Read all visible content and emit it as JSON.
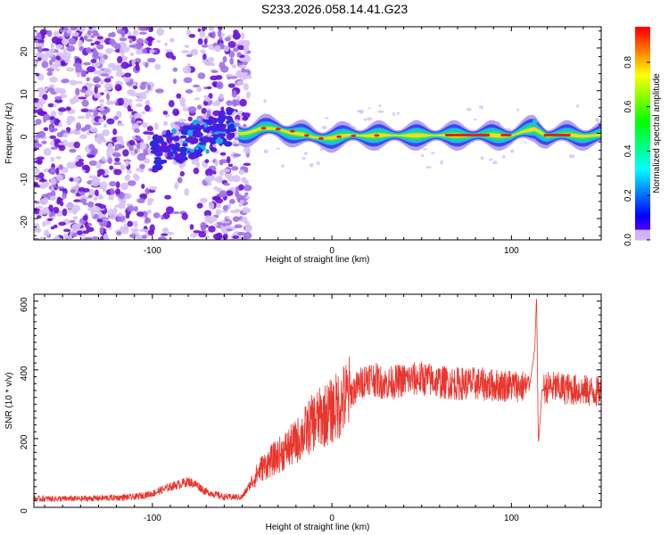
{
  "title": "S233.2026.058.14.41.G23",
  "chart_data": [
    {
      "type": "heatmap",
      "name": "spectrogram",
      "xlabel": "Height of straight line (km)",
      "ylabel": "Frequency (Hz)",
      "xlim": [
        -166,
        150
      ],
      "ylim": [
        -25,
        25
      ],
      "xticks": [
        -100,
        0,
        100
      ],
      "yticks": [
        -20,
        -10,
        0,
        10,
        20
      ],
      "colorbar": {
        "label": "Normalized spectral amplitude",
        "range": [
          0,
          1
        ],
        "ticks": [
          "0.0",
          "0.2",
          "0.4",
          "0.6",
          "0.8"
        ]
      },
      "signal_track": [
        {
          "x": -95,
          "y": -4
        },
        {
          "x": -80,
          "y": -2
        },
        {
          "x": -60,
          "y": 0
        },
        {
          "x": -50,
          "y": 0
        },
        {
          "x": -40,
          "y": 1
        },
        {
          "x": -30,
          "y": 1
        },
        {
          "x": -20,
          "y": 0
        },
        {
          "x": -10,
          "y": -1
        },
        {
          "x": 0,
          "y": -1
        },
        {
          "x": 10,
          "y": -0.5
        },
        {
          "x": 30,
          "y": -0.5
        },
        {
          "x": 60,
          "y": -0.5
        },
        {
          "x": 100,
          "y": -0.5
        },
        {
          "x": 113,
          "y": 1
        },
        {
          "x": 120,
          "y": -0.5
        },
        {
          "x": 150,
          "y": -0.5
        }
      ]
    },
    {
      "type": "line",
      "name": "snr",
      "xlabel": "Height of straight line (km)",
      "ylabel": "SNR (10 * v/v)",
      "xlim": [
        -166,
        150
      ],
      "ylim": [
        0,
        620
      ],
      "xticks": [
        -100,
        0,
        100
      ],
      "yticks": [
        0,
        200,
        400,
        600
      ],
      "color": "#e8352e",
      "series": [
        {
          "name": "SNR",
          "x": [
            -166,
            -140,
            -110,
            -100,
            -90,
            -80,
            -75,
            -70,
            -60,
            -50,
            -45,
            -40,
            -30,
            -20,
            -10,
            0,
            10,
            20,
            30,
            40,
            50,
            60,
            70,
            80,
            90,
            100,
            110,
            113,
            114,
            115,
            117,
            120,
            130,
            140,
            150
          ],
          "values": [
            25,
            25,
            30,
            40,
            60,
            75,
            65,
            45,
            30,
            30,
            70,
            110,
            150,
            190,
            250,
            280,
            330,
            380,
            360,
            370,
            375,
            365,
            360,
            360,
            355,
            355,
            350,
            460,
            620,
            180,
            340,
            350,
            345,
            340,
            335
          ]
        }
      ]
    }
  ]
}
